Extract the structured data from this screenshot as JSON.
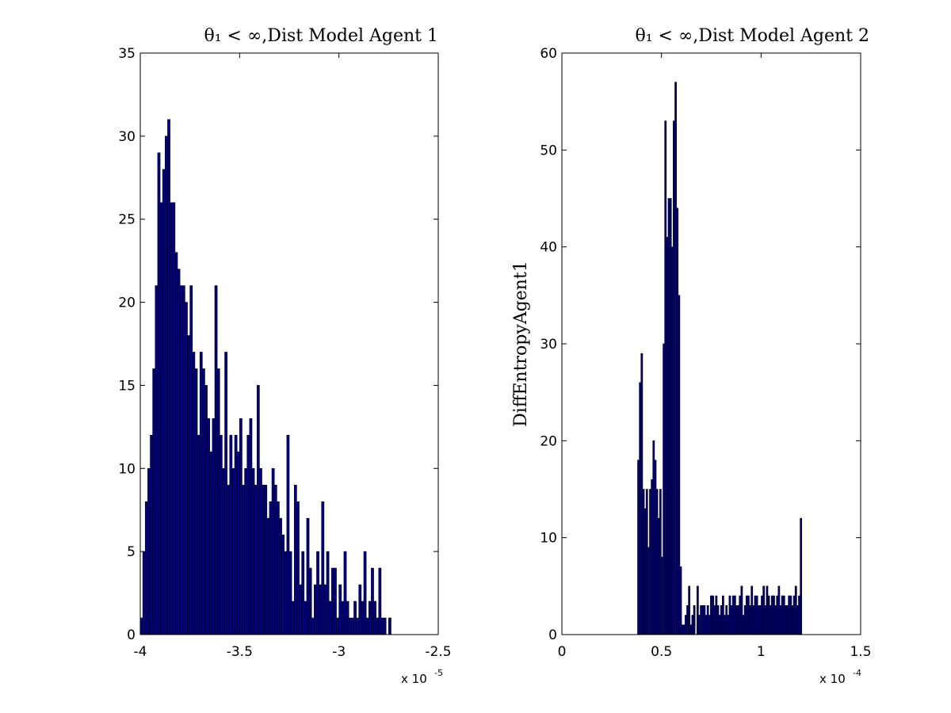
{
  "chart_data": [
    {
      "type": "bar",
      "title": "θ₁ < ∞,Dist Model Agent 1",
      "xlabel": "",
      "ylabel": "",
      "x_multiplier": "x 10",
      "x_multiplier_exponent": "-5",
      "xlim": [
        -4.0,
        -2.5
      ],
      "ylim": [
        0,
        35
      ],
      "xticks": [
        -4,
        -3.5,
        -3,
        -2.5
      ],
      "xtick_labels": [
        "-4",
        "-3.5",
        "-3",
        "-2.5"
      ],
      "yticks": [
        0,
        5,
        10,
        15,
        20,
        25,
        30,
        35
      ],
      "ytick_labels": [
        "0",
        "5",
        "10",
        "15",
        "20",
        "25",
        "30",
        "35"
      ],
      "bar_color": "#000080",
      "bin_start": -4.0,
      "bin_width": 0.0125,
      "values": [
        1,
        5,
        8,
        10,
        12,
        16,
        21,
        29,
        26,
        28,
        30,
        31,
        26,
        26,
        23,
        22,
        21,
        21,
        20,
        18,
        21,
        17,
        16,
        12,
        17,
        16,
        15,
        13,
        11,
        13,
        21,
        16,
        12,
        10,
        17,
        9,
        12,
        10,
        12,
        11,
        13,
        9,
        10,
        12,
        13,
        10,
        9,
        15,
        10,
        9,
        9,
        7,
        8,
        10,
        9,
        8,
        7,
        6,
        5,
        12,
        5,
        2,
        9,
        8,
        3,
        5,
        2,
        7,
        4,
        1,
        3,
        5,
        3,
        8,
        3,
        5,
        2,
        4,
        4,
        1,
        3,
        2,
        5,
        2,
        1,
        1,
        2,
        1,
        3,
        2,
        5,
        1,
        2,
        4,
        2,
        1,
        4,
        1,
        1,
        0,
        1,
        0,
        0,
        0,
        0,
        0,
        0,
        0,
        0,
        0,
        0,
        0,
        0,
        0,
        0,
        0,
        0,
        0,
        0,
        0
      ]
    },
    {
      "type": "bar",
      "title": "θ₁ < ∞,Dist Model Agent 2",
      "xlabel": "",
      "ylabel": "DiffEntropyAgent1",
      "x_multiplier": "x 10",
      "x_multiplier_exponent": "-4",
      "xlim": [
        0,
        1.5
      ],
      "ylim": [
        0,
        60
      ],
      "xticks": [
        0,
        0.5,
        1,
        1.5
      ],
      "xtick_labels": [
        "0",
        "0.5",
        "1",
        "1.5"
      ],
      "yticks": [
        0,
        10,
        20,
        30,
        40,
        50,
        60
      ],
      "ytick_labels": [
        "0",
        "10",
        "20",
        "30",
        "40",
        "50",
        "60"
      ],
      "bar_color": "#000080",
      "bin_start": 0.38,
      "bin_width": 0.0085,
      "values": [
        18,
        26,
        29,
        15,
        13,
        15,
        9,
        15,
        16,
        20,
        18,
        15,
        12,
        15,
        8,
        30,
        53,
        41,
        45,
        45,
        40,
        53,
        57,
        44,
        35,
        7,
        1,
        1,
        2,
        3,
        5,
        1,
        2,
        3,
        0,
        5,
        2,
        3,
        3,
        3,
        2,
        3,
        2,
        4,
        4,
        3,
        4,
        3,
        2,
        3,
        4,
        2,
        3,
        2,
        4,
        3,
        4,
        4,
        3,
        3,
        4,
        5,
        2,
        3,
        4,
        4,
        3,
        5,
        3,
        4,
        4,
        3,
        3,
        4,
        5,
        3,
        5,
        4,
        3,
        4,
        4,
        3,
        4,
        5,
        3,
        4,
        4,
        3,
        3,
        4,
        4,
        3,
        4,
        5,
        3,
        4,
        12
      ]
    }
  ]
}
